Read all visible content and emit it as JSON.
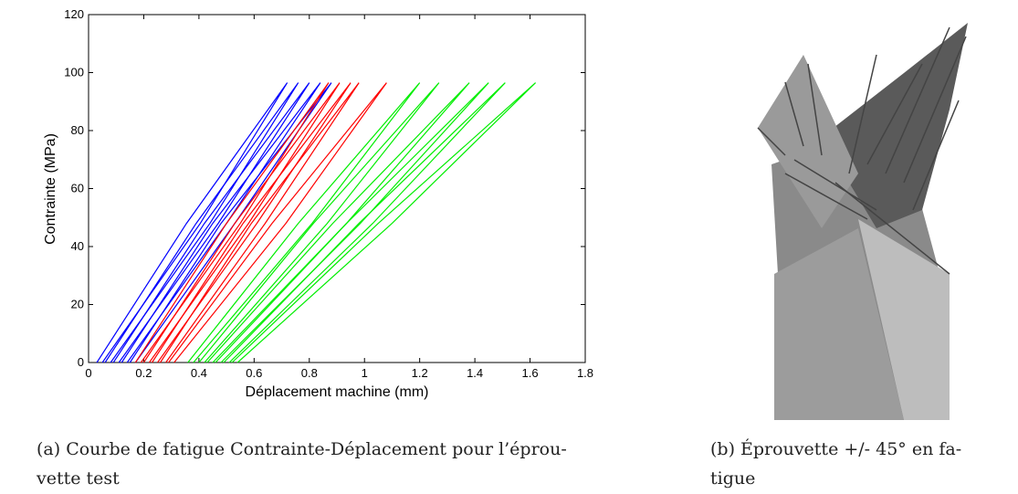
{
  "chart_data": {
    "type": "line",
    "xlabel": "Déplacement machine (mm)",
    "ylabel": "Contrainte (MPa)",
    "xlim": [
      0,
      1.8
    ],
    "xticks": [
      0,
      0.2,
      0.4,
      0.6,
      0.8,
      1,
      1.2,
      1.4,
      1.6,
      1.8
    ],
    "ylim": [
      0,
      120
    ],
    "yticks": [
      0,
      20,
      40,
      60,
      80,
      100,
      120
    ],
    "series": [
      {
        "color": "#0000ff",
        "x": [
          0.03,
          0.355,
          0.72,
          0.405,
          0.05,
          null,
          0.06,
          0.39,
          0.76,
          0.44,
          0.08,
          null,
          0.09,
          0.42,
          0.8,
          0.47,
          0.11,
          null,
          0.12,
          0.45,
          0.84,
          0.5,
          0.14,
          null,
          0.15,
          0.48,
          0.88,
          0.53,
          0.17
        ],
        "values": [
          0,
          48,
          96.5,
          48,
          0,
          null,
          0,
          48,
          96.5,
          48,
          0,
          null,
          0,
          48,
          96.5,
          48,
          0,
          null,
          0,
          48,
          96.5,
          48,
          0,
          null,
          0,
          48,
          96.5,
          48,
          0
        ]
      },
      {
        "color": "#ff0000",
        "x": [
          0.17,
          0.5,
          0.87,
          0.55,
          0.19,
          null,
          0.2,
          0.53,
          0.91,
          0.58,
          0.22,
          null,
          0.23,
          0.56,
          0.95,
          0.61,
          0.25,
          null,
          0.26,
          0.59,
          0.98,
          0.64,
          0.28,
          null,
          0.29,
          0.665,
          1.08,
          0.715,
          0.31
        ],
        "values": [
          0,
          48,
          96.5,
          48,
          0,
          null,
          0,
          48,
          96.5,
          48,
          0,
          null,
          0,
          48,
          96.5,
          48,
          0,
          null,
          0,
          48,
          96.5,
          48,
          0,
          null,
          0,
          48,
          96.5,
          48,
          0
        ]
      },
      {
        "color": "#00ee00",
        "x": [
          0.36,
          0.76,
          1.2,
          0.81,
          0.38,
          null,
          0.4,
          0.815,
          1.27,
          0.865,
          0.42,
          null,
          0.43,
          0.885,
          1.38,
          0.935,
          0.45,
          null,
          0.46,
          0.935,
          1.45,
          0.985,
          0.48,
          null,
          0.49,
          0.98,
          1.51,
          1.03,
          0.51,
          null,
          0.52,
          1.05,
          1.62,
          1.1,
          0.54
        ],
        "values": [
          0,
          48,
          96.5,
          48,
          0,
          null,
          0,
          48,
          96.5,
          48,
          0,
          null,
          0,
          48,
          96.5,
          48,
          0,
          null,
          0,
          48,
          96.5,
          48,
          0,
          null,
          0,
          48,
          96.5,
          48,
          0,
          null,
          0,
          48,
          96.5,
          48,
          0
        ]
      }
    ]
  },
  "captions": [
    [
      "(a) Courbe de fatigue Contrainte-Déplacement pour l’éprou-",
      "vette test"
    ],
    [
      "(b) Éprouvette +/- 45° en fa-",
      "tigue"
    ]
  ]
}
